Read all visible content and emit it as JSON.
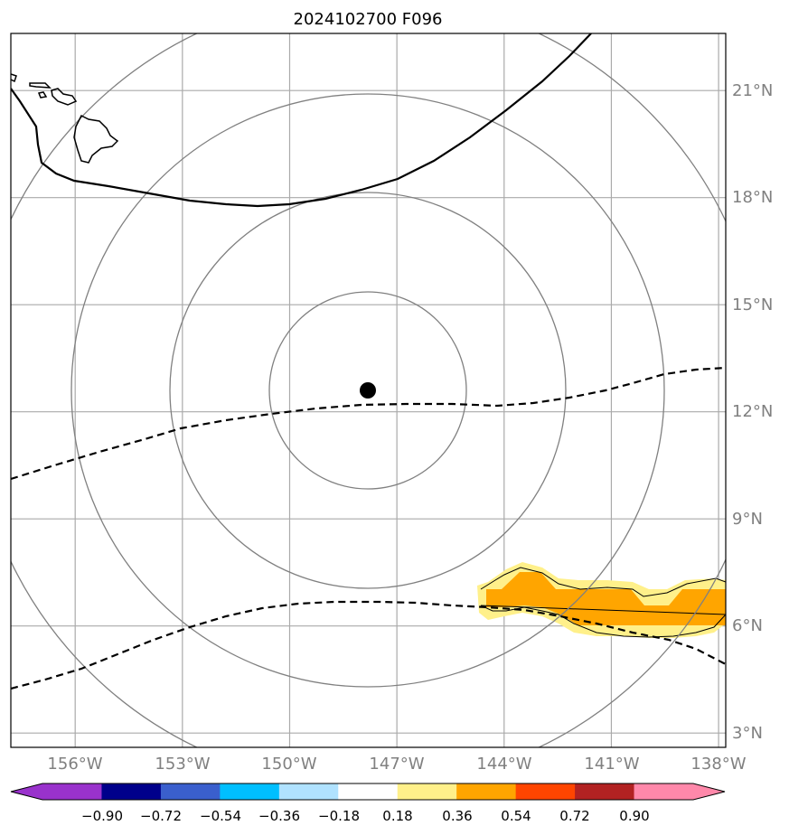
{
  "title": "2024102700 F096",
  "map": {
    "lon_labels": [
      "156°W",
      "153°W",
      "150°W",
      "147°W",
      "144°W",
      "141°W",
      "138°W"
    ],
    "lat_labels": [
      "3°N",
      "6°N",
      "9°N",
      "12°N",
      "15°N",
      "18°N",
      "21°N"
    ],
    "lon_values": [
      -156,
      -153,
      -150,
      -147,
      -144,
      -141,
      -138
    ],
    "lat_values": [
      3,
      6,
      9,
      12,
      15,
      18,
      21
    ],
    "extent": {
      "lon_min": -157.8,
      "lon_max": -137.8,
      "lat_min": 2.6,
      "lat_max": 22.6
    },
    "gridlines": true,
    "center_marker": {
      "lon": -148.0,
      "lat": 12.6
    },
    "range_rings": 4,
    "colors": {
      "gridline": "#aaaaaa",
      "ring": "#808080",
      "coast": "#000000"
    }
  },
  "colorbar": {
    "tick_labels": [
      "−0.90",
      "−0.72",
      "−0.54",
      "−0.36",
      "−0.18",
      "0.18",
      "0.36",
      "0.54",
      "0.72",
      "0.90"
    ],
    "levels": [
      -0.9,
      -0.72,
      -0.54,
      -0.36,
      -0.18,
      0.18,
      0.36,
      0.54,
      0.72,
      0.9
    ],
    "under_color": "#9932cc",
    "over_color": "#ff88aa",
    "colors": [
      "#00008b",
      "#3a5fcd",
      "#00bfff",
      "#b0e2ff",
      "#ffffff",
      "#fff08a",
      "#ffa500",
      "#ff4500",
      "#b22222"
    ],
    "extend": "both"
  }
}
